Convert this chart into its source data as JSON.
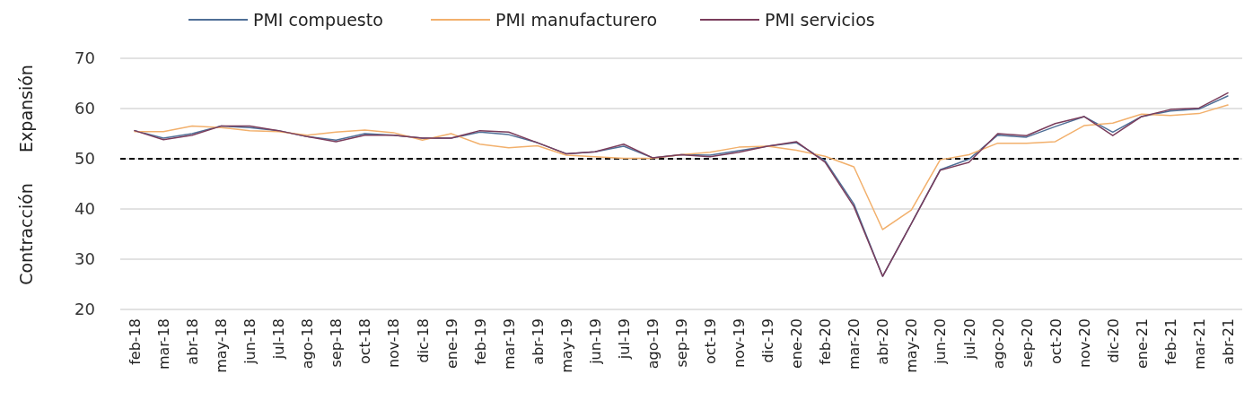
{
  "chart_data": {
    "type": "line",
    "categories": [
      "feb-18",
      "mar-18",
      "abr-18",
      "may-18",
      "jun-18",
      "jul-18",
      "ago-18",
      "sep-18",
      "oct-18",
      "nov-18",
      "dic-18",
      "ene-19",
      "feb-19",
      "mar-19",
      "abr-19",
      "may-19",
      "jun-19",
      "jul-19",
      "ago-19",
      "sep-19",
      "oct-19",
      "nov-19",
      "dic-19",
      "ene-20",
      "feb-20",
      "mar-20",
      "abr-20",
      "may-20",
      "jun-20",
      "jul-20",
      "ago-20",
      "sep-20",
      "oct-20",
      "nov-20",
      "dic-20",
      "ene-21",
      "feb-21",
      "mar-21",
      "abr-21"
    ],
    "series": [
      {
        "name": "PMI compuesto",
        "color": "#4f6f97",
        "values": [
          55.6,
          54.1,
          55.0,
          56.5,
          56.2,
          55.6,
          54.4,
          53.7,
          55.0,
          54.7,
          54.1,
          54.1,
          55.3,
          54.8,
          53.2,
          51.0,
          51.4,
          52.5,
          50.2,
          50.8,
          50.7,
          51.6,
          52.5,
          53.2,
          49.6,
          41.0,
          26.6,
          37.1,
          47.8,
          49.9,
          54.7,
          54.3,
          56.4,
          58.4,
          55.3,
          58.4,
          59.5,
          59.9,
          62.5
        ]
      },
      {
        "name": "PMI manufacturero",
        "color": "#f2b06c",
        "values": [
          55.4,
          55.4,
          56.5,
          56.2,
          55.6,
          55.4,
          54.7,
          55.3,
          55.7,
          55.2,
          53.7,
          55.0,
          52.9,
          52.2,
          52.6,
          50.7,
          50.4,
          50.1,
          50.1,
          50.8,
          51.3,
          52.3,
          52.5,
          51.7,
          50.5,
          48.4,
          35.9,
          39.8,
          49.8,
          50.8,
          53.1,
          53.1,
          53.4,
          56.6,
          57.1,
          58.9,
          58.6,
          59.0,
          60.7
        ]
      },
      {
        "name": "PMI servicios",
        "color": "#7a3d5c",
        "values": [
          55.6,
          53.8,
          54.7,
          56.5,
          56.5,
          55.6,
          54.4,
          53.4,
          54.7,
          54.7,
          54.1,
          54.1,
          55.6,
          55.3,
          53.2,
          51.0,
          51.4,
          52.9,
          50.2,
          50.8,
          50.4,
          51.3,
          52.5,
          53.4,
          49.3,
          40.5,
          26.6,
          37.1,
          47.7,
          49.3,
          55.0,
          54.6,
          57.0,
          58.4,
          54.6,
          58.4,
          59.8,
          60.1,
          63.1
        ]
      }
    ],
    "ylim": [
      20,
      70
    ],
    "yticks": [
      20,
      30,
      40,
      50,
      60,
      70
    ],
    "grid": "y",
    "legend": "top",
    "line_style": "solid",
    "marker": "none",
    "ref_lines": [
      {
        "axis": "y",
        "value": 50,
        "color": "#000000",
        "line_style": "dashed"
      }
    ],
    "annotations": [
      "Expansión",
      "Contracción"
    ]
  }
}
